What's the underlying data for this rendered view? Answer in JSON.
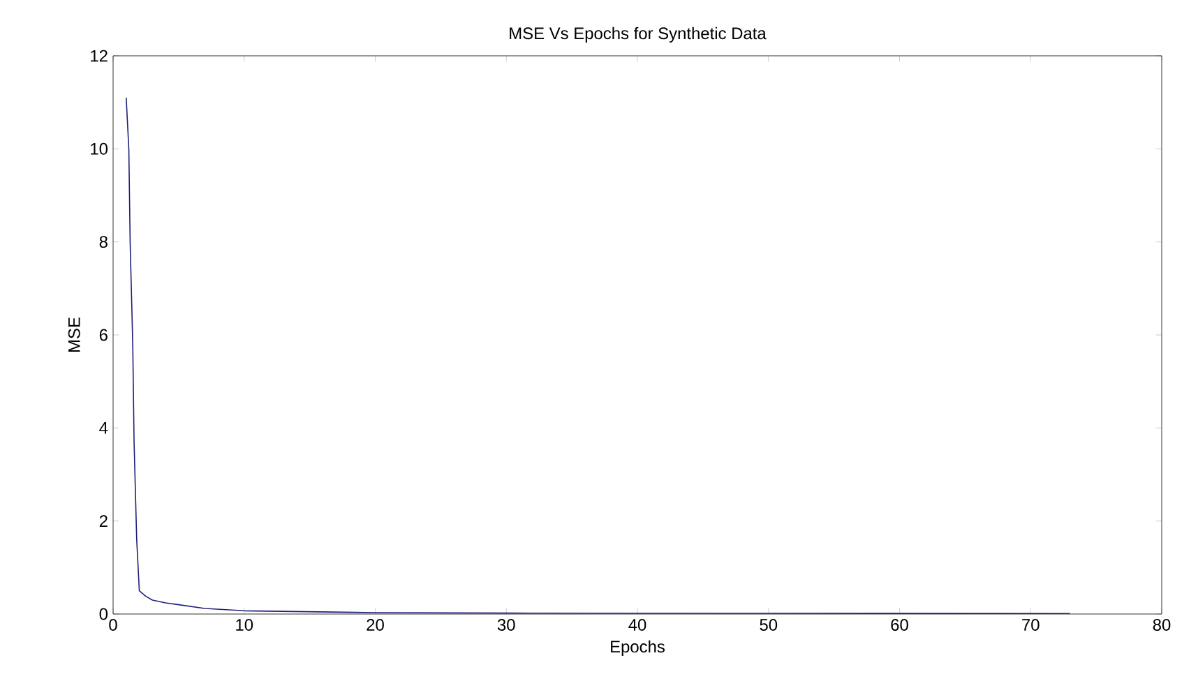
{
  "chart_data": {
    "type": "line",
    "title": "MSE Vs Epochs for Synthetic Data",
    "xlabel": "Epochs",
    "ylabel": "MSE",
    "x": [
      1,
      1.2,
      1.3,
      1.5,
      1.6,
      1.8,
      2,
      2.5,
      3,
      4,
      5,
      7,
      10,
      15,
      20,
      30,
      50,
      73
    ],
    "series": [
      {
        "color": "#1f1f7a",
        "values": [
          11.1,
          10,
          8,
          5.8,
          3.7,
          1.6,
          0.5,
          0.38,
          0.3,
          0.24,
          0.2,
          0.12,
          0.07,
          0.05,
          0.03,
          0.02,
          0.015,
          0.01
        ]
      }
    ],
    "xlim": [
      0,
      80
    ],
    "ylim": [
      0,
      12
    ],
    "xticks": [
      0,
      10,
      20,
      30,
      40,
      50,
      60,
      70,
      80
    ],
    "yticks": [
      0,
      2,
      4,
      6,
      8,
      10,
      12
    ],
    "grid": false,
    "line_style": "solid",
    "marker": "none"
  }
}
